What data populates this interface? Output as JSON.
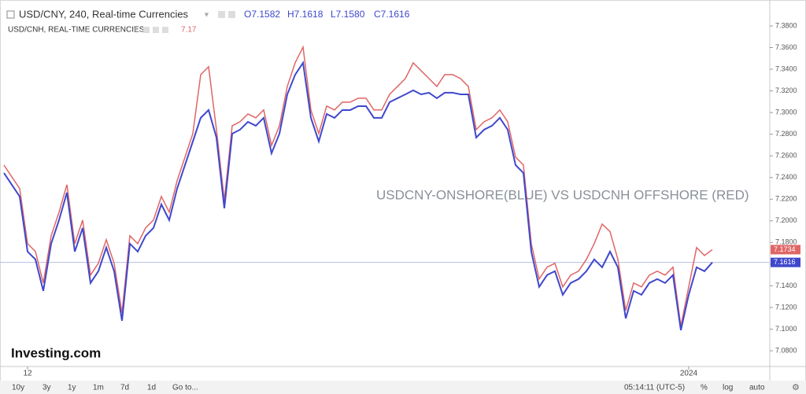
{
  "chart_data": {
    "type": "line",
    "annotation": "USDCNY-ONSHORE(BLUE) VS USDCNH OFFSHORE (RED)",
    "logo": "Investing.com",
    "categories": [
      null,
      null,
      null,
      "12",
      null,
      null,
      null,
      null,
      null,
      null,
      null,
      null,
      null,
      null,
      null,
      null,
      null,
      null,
      null,
      null,
      null,
      null,
      null,
      null,
      null,
      null,
      null,
      null,
      null,
      null,
      null,
      null,
      null,
      null,
      null,
      null,
      null,
      null,
      null,
      null,
      null,
      null,
      null,
      null,
      null,
      null,
      null,
      null,
      null,
      null,
      null,
      null,
      null,
      null,
      null,
      null,
      null,
      null,
      null,
      null,
      null,
      null,
      null,
      null,
      null,
      null,
      null,
      null,
      null,
      null,
      null,
      null,
      null,
      null,
      null,
      null,
      null,
      null,
      null,
      null,
      null,
      null,
      null,
      null,
      null,
      null,
      null,
      "2024",
      null,
      null,
      null
    ],
    "series": [
      {
        "name": "USD/CNY, 240, Real-time Currencies",
        "color": "#3f48cc",
        "ohlc_labels": [
          "O7.1582",
          "H7.1618",
          "L7.1580",
          "C7.1616"
        ],
        "price_tag": "7.1616",
        "values": [
          7.2442,
          7.2333,
          7.2225,
          7.1716,
          7.1644,
          7.1353,
          7.1789,
          7.2007,
          7.2261,
          7.1716,
          7.1934,
          7.1426,
          7.1535,
          7.1753,
          7.1535,
          7.1077,
          7.1789,
          7.1716,
          7.1862,
          7.1934,
          7.2152,
          7.2007,
          7.2297,
          7.2515,
          7.2733,
          7.2951,
          7.3023,
          7.2769,
          7.2116,
          7.2805,
          7.2842,
          7.2914,
          7.2878,
          7.2951,
          7.2624,
          7.2805,
          7.3168,
          7.335,
          7.3459,
          7.2951,
          7.2733,
          7.2987,
          7.2951,
          7.3023,
          7.3023,
          7.3059,
          7.3059,
          7.2951,
          7.2951,
          7.3096,
          7.3132,
          7.3168,
          7.3205,
          7.3168,
          7.3183,
          7.3132,
          7.3183,
          7.3183,
          7.3168,
          7.3168,
          7.2769,
          7.2842,
          7.2878,
          7.2951,
          7.2842,
          7.2515,
          7.2442,
          7.1716,
          7.139,
          7.1499,
          7.1535,
          7.1317,
          7.1426,
          7.1462,
          7.1535,
          7.1644,
          7.1571,
          7.1716,
          7.1571,
          7.1099,
          7.1353,
          7.1317,
          7.1426,
          7.1462,
          7.1426,
          7.1499,
          7.099,
          7.1317,
          7.1571,
          7.1535,
          7.1616
        ]
      },
      {
        "name": "USD/CNH, REAL-TIME CURRENCIES",
        "color": "#e06666",
        "legend_value": "7.17",
        "price_tag": "7.1734",
        "values": [
          7.2515,
          7.2406,
          7.2298,
          7.1789,
          7.1717,
          7.1426,
          7.1862,
          7.208,
          7.2334,
          7.1789,
          7.2007,
          7.1499,
          7.1608,
          7.1826,
          7.1608,
          7.115,
          7.1862,
          7.1789,
          7.1935,
          7.2007,
          7.2225,
          7.208,
          7.237,
          7.2588,
          7.2806,
          7.335,
          7.3423,
          7.2842,
          7.2189,
          7.2878,
          7.2915,
          7.2987,
          7.2951,
          7.3024,
          7.2697,
          7.2878,
          7.3241,
          7.346,
          7.3604,
          7.3024,
          7.2806,
          7.306,
          7.3024,
          7.3096,
          7.3096,
          7.3132,
          7.3132,
          7.3024,
          7.3024,
          7.3169,
          7.3241,
          7.3314,
          7.3459,
          7.3386,
          7.3314,
          7.3241,
          7.335,
          7.335,
          7.3314,
          7.3241,
          7.2842,
          7.2915,
          7.2951,
          7.3024,
          7.2915,
          7.2588,
          7.2515,
          7.1789,
          7.1463,
          7.1572,
          7.1608,
          7.139,
          7.1499,
          7.1535,
          7.1644,
          7.179,
          7.197,
          7.19,
          7.1644,
          7.1172,
          7.1426,
          7.139,
          7.1499,
          7.1535,
          7.1499,
          7.1572,
          7.1027,
          7.139,
          7.1753,
          7.168,
          7.1734
        ]
      }
    ],
    "ylim": [
      7.0655,
      7.4003
    ],
    "yticks": [
      {
        "value": 7.08,
        "label": "7.0800"
      },
      {
        "value": 7.1,
        "label": "7.1000"
      },
      {
        "value": 7.12,
        "label": "7.1200"
      },
      {
        "value": 7.14,
        "label": "7.1400"
      },
      {
        "value": 7.16,
        "label": "7.1600"
      },
      {
        "value": 7.18,
        "label": "7.1800"
      },
      {
        "value": 7.2,
        "label": "7.2000"
      },
      {
        "value": 7.22,
        "label": "7.2200"
      },
      {
        "value": 7.24,
        "label": "7.2400"
      },
      {
        "value": 7.26,
        "label": "7.2600"
      },
      {
        "value": 7.28,
        "label": "7.2800"
      },
      {
        "value": 7.3,
        "label": "7.3000"
      },
      {
        "value": 7.32,
        "label": "7.3200"
      },
      {
        "value": 7.34,
        "label": "7.3400"
      },
      {
        "value": 7.36,
        "label": "7.3600"
      },
      {
        "value": 7.38,
        "label": "7.3800"
      }
    ],
    "toolbar_left": [
      "10y",
      "3y",
      "1y",
      "1m",
      "7d",
      "1d",
      "Go to..."
    ],
    "toolbar_right": [
      "05:14:11 (UTC-5)",
      "%",
      "log",
      "auto"
    ]
  }
}
